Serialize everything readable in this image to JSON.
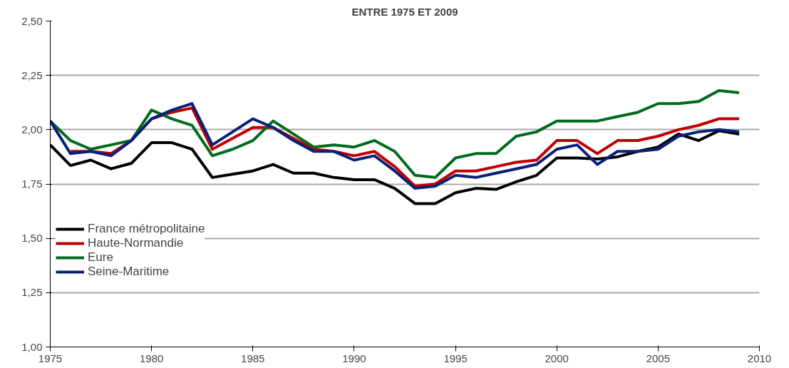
{
  "chart_data": {
    "type": "line",
    "title": "ENTRE 1975 ET 2009",
    "x": [
      1975,
      1976,
      1977,
      1978,
      1979,
      1980,
      1981,
      1982,
      1983,
      1984,
      1985,
      1986,
      1987,
      1988,
      1989,
      1990,
      1991,
      1992,
      1993,
      1994,
      1995,
      1996,
      1997,
      1998,
      1999,
      2000,
      2001,
      2002,
      2003,
      2004,
      2005,
      2006,
      2007,
      2008,
      2009
    ],
    "series": [
      {
        "name": "France métropolitaine",
        "color": "#000000",
        "values": [
          1.93,
          1.835,
          1.86,
          1.82,
          1.845,
          1.94,
          1.94,
          1.91,
          1.78,
          1.795,
          1.81,
          1.84,
          1.8,
          1.8,
          1.78,
          1.77,
          1.77,
          1.73,
          1.66,
          1.66,
          1.71,
          1.73,
          1.725,
          1.76,
          1.79,
          1.87,
          1.87,
          1.865,
          1.875,
          1.9,
          1.92,
          1.98,
          1.95,
          1.995,
          1.98
        ]
      },
      {
        "name": "Haute-Normandie",
        "color": "#c00000",
        "values": [
          null,
          1.9,
          1.9,
          1.89,
          1.95,
          2.05,
          2.08,
          2.1,
          1.91,
          1.96,
          2.01,
          2.01,
          1.96,
          1.91,
          1.9,
          1.88,
          1.9,
          1.83,
          1.74,
          1.75,
          1.81,
          1.81,
          1.83,
          1.85,
          1.86,
          1.95,
          1.95,
          1.89,
          1.95,
          1.95,
          1.97,
          2.0,
          2.02,
          2.05,
          2.05
        ]
      },
      {
        "name": "Eure",
        "color": "#006a1e",
        "values": [
          2.04,
          1.95,
          1.91,
          1.93,
          1.95,
          2.09,
          2.05,
          2.02,
          1.88,
          1.91,
          1.95,
          2.04,
          1.98,
          1.92,
          1.93,
          1.92,
          1.95,
          1.9,
          1.79,
          1.78,
          1.87,
          1.89,
          1.89,
          1.97,
          1.99,
          2.04,
          2.04,
          2.04,
          2.06,
          2.08,
          2.12,
          2.12,
          2.13,
          2.18,
          2.17
        ]
      },
      {
        "name": "Seine-Maritime",
        "color": "#0a1f78",
        "values": [
          2.04,
          1.89,
          1.9,
          1.88,
          1.95,
          2.05,
          2.09,
          2.12,
          1.93,
          1.99,
          2.05,
          2.01,
          1.95,
          1.9,
          1.9,
          1.86,
          1.88,
          1.81,
          1.73,
          1.74,
          1.79,
          1.78,
          1.8,
          1.82,
          1.84,
          1.91,
          1.93,
          1.84,
          1.9,
          1.9,
          1.91,
          1.97,
          1.99,
          2.0,
          1.99
        ]
      }
    ],
    "xlim": [
      1975,
      2010
    ],
    "xticks": [
      1975,
      1980,
      1985,
      1990,
      1995,
      2000,
      2005,
      2010
    ],
    "ylim": [
      1.0,
      2.5
    ],
    "yticks": [
      {
        "value": 1.0,
        "label": "1,00"
      },
      {
        "value": 1.25,
        "label": "1,25"
      },
      {
        "value": 1.5,
        "label": "1,50"
      },
      {
        "value": 1.75,
        "label": "1,75"
      },
      {
        "value": 2.0,
        "label": "2,00"
      },
      {
        "value": 2.25,
        "label": "2,25"
      },
      {
        "value": 2.5,
        "label": "2,50"
      }
    ],
    "grid": "y",
    "legend": "bottom left",
    "marker": "none",
    "line_style": "solid"
  }
}
